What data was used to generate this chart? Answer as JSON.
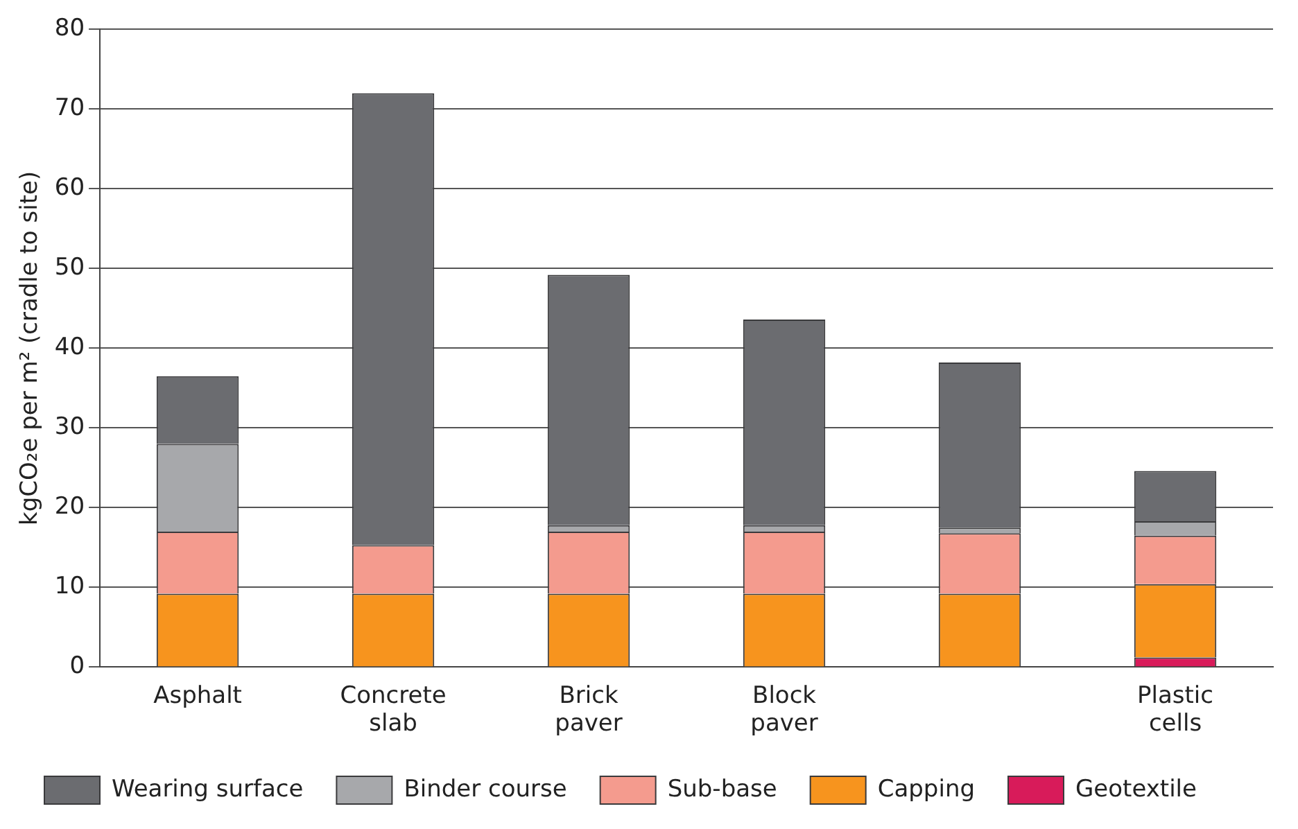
{
  "chart_data": {
    "type": "bar",
    "stacked": true,
    "ylabel": "kgCO₂e per m² (cradle to site)",
    "categories": [
      "Asphalt",
      "Concrete slab",
      "Brick paver",
      "Block paver",
      null,
      "Plastic cells"
    ],
    "series": [
      {
        "name": "Geotextile",
        "color": "#d81b5a",
        "values": [
          0,
          0,
          0,
          0,
          0,
          1.2
        ]
      },
      {
        "name": "Capping",
        "color": "#f7941e",
        "values": [
          9.2,
          9.2,
          9.2,
          9.2,
          9.2,
          9.2
        ]
      },
      {
        "name": "Sub-base",
        "color": "#f49b8e",
        "values": [
          7.8,
          6.1,
          7.8,
          7.8,
          7.6,
          6.1
        ]
      },
      {
        "name": "Binder course",
        "color": "#a7a8ab",
        "values": [
          11,
          0,
          0.8,
          0.8,
          0.7,
          1.8
        ]
      },
      {
        "name": "Wearing surface",
        "color": "#6b6c70",
        "values": [
          8.5,
          56.7,
          31.4,
          25.8,
          20.7,
          6.3
        ]
      }
    ],
    "ylim": [
      0,
      80
    ],
    "yticks": [
      0,
      10,
      20,
      30,
      40,
      50,
      60,
      70,
      80
    ],
    "grid": "y",
    "legend": "bottom"
  }
}
